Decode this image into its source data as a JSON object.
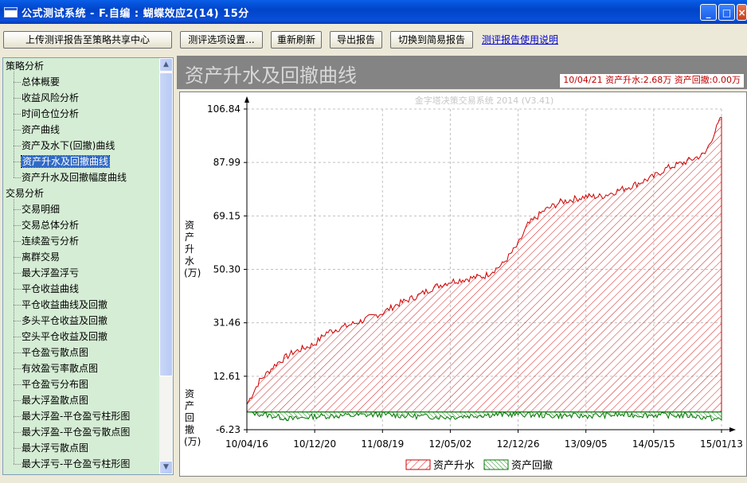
{
  "window": {
    "title": "公式测试系统 - F.自编 : 蝴蝶效应2(14) 15分",
    "buttons": {
      "minimize": "_",
      "maximize": "□",
      "close": "×"
    }
  },
  "toolbar": {
    "upload_label": "上传测评报告至策略共享中心",
    "options_label": "测评选项设置...",
    "refresh_label": "重新刷新",
    "export_label": "导出报告",
    "switch_label": "切换到简易报告",
    "help_link": "测评报告使用说明"
  },
  "sidebar": {
    "groups": [
      {
        "label": "策略分析",
        "items": [
          "总体概要",
          "收益风险分析",
          "时间仓位分析",
          "资产曲线",
          "资产及水下(回撤)曲线",
          "资产升水及回撤曲线",
          "资产升水及回撤幅度曲线"
        ]
      },
      {
        "label": "交易分析",
        "items": [
          "交易明细",
          "交易总体分析",
          "连续盈亏分析",
          "离群交易",
          "最大浮盈浮亏",
          "平仓收益曲线",
          "平仓收益曲线及回撤",
          "多头平仓收益及回撤",
          "空头平仓收益及回撤",
          "平仓盈亏散点图",
          "有效盈亏率散点图",
          "平仓盈亏分布图",
          "最大浮盈散点图",
          "最大浮盈-平仓盈亏柱形图",
          "最大浮盈-平仓盈亏散点图",
          "最大浮亏散点图",
          "最大浮亏-平仓盈亏柱形图"
        ]
      }
    ],
    "selected": "资产升水及回撤曲线"
  },
  "panel": {
    "title": "资产升水及回撤曲线",
    "info_text": "10/04/21 资产升水:2.68万  资产回撤:0.00万"
  },
  "chart_data": {
    "type": "area",
    "watermark": "金字塔决策交易系统 2014 (V3.41)",
    "y_ticks": [
      "106.84",
      "87.99",
      "69.15",
      "50.30",
      "31.46",
      "12.61",
      "-6.23"
    ],
    "x_ticks": [
      "10/04/16",
      "10/12/20",
      "11/08/19",
      "12/05/02",
      "12/12/26",
      "13/09/05",
      "14/05/15",
      "15/01/13"
    ],
    "ylabel_upper": "资产升水(万)",
    "ylabel_lower": "资产回撤(万)",
    "ylim": [
      -6.23,
      106.84
    ],
    "grid": true,
    "legend_position": "bottom-center",
    "series": [
      {
        "name": "资产升水",
        "color": "#cc0000",
        "x": [
          "10/04/16",
          "10/06/01",
          "10/08/01",
          "10/10/01",
          "10/12/20",
          "11/02/01",
          "11/04/01",
          "11/06/01",
          "11/08/19",
          "11/10/15",
          "12/01/01",
          "12/03/01",
          "12/05/02",
          "12/07/01",
          "12/09/01",
          "12/11/01",
          "12/12/26",
          "13/02/01",
          "13/04/01",
          "13/06/01",
          "13/09/05",
          "13/11/01",
          "14/01/01",
          "14/03/01",
          "14/05/15",
          "14/07/01",
          "14/09/01",
          "14/11/15",
          "15/01/13"
        ],
        "values": [
          2.7,
          11,
          17,
          21,
          24,
          28,
          30,
          32,
          35,
          38,
          41,
          44,
          46,
          47,
          48,
          52,
          59,
          66,
          71,
          74,
          76,
          76,
          78,
          80,
          83,
          86,
          88,
          91,
          104
        ]
      },
      {
        "name": "资产回撤",
        "color": "#007700",
        "x": [
          "10/04/16",
          "10/10/01",
          "10/12/20",
          "11/05/01",
          "11/08/19",
          "12/01/01",
          "12/05/02",
          "12/09/01",
          "12/12/26",
          "13/05/01",
          "13/09/05",
          "14/01/01",
          "14/05/15",
          "14/10/01",
          "15/01/13"
        ],
        "values": [
          0,
          -2.5,
          -1.5,
          -1.2,
          -0.9,
          -1.5,
          -1.8,
          -1.0,
          -0.8,
          -1.3,
          -1.4,
          -1.0,
          -1.1,
          -1.3,
          -2.8
        ]
      }
    ]
  }
}
